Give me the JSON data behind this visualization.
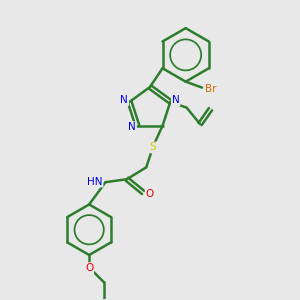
{
  "bg_color": "#ebebeb",
  "atom_colors": {
    "C": "#2d7d2d",
    "N": "#0000ee",
    "O": "#ee0000",
    "S": "#cccc00",
    "Br": "#cc6600",
    "H": "#2d7d2d"
  },
  "bond_color": "#2d7d2d",
  "bond_width": 1.8,
  "fig_bg": "#e8e8e8"
}
